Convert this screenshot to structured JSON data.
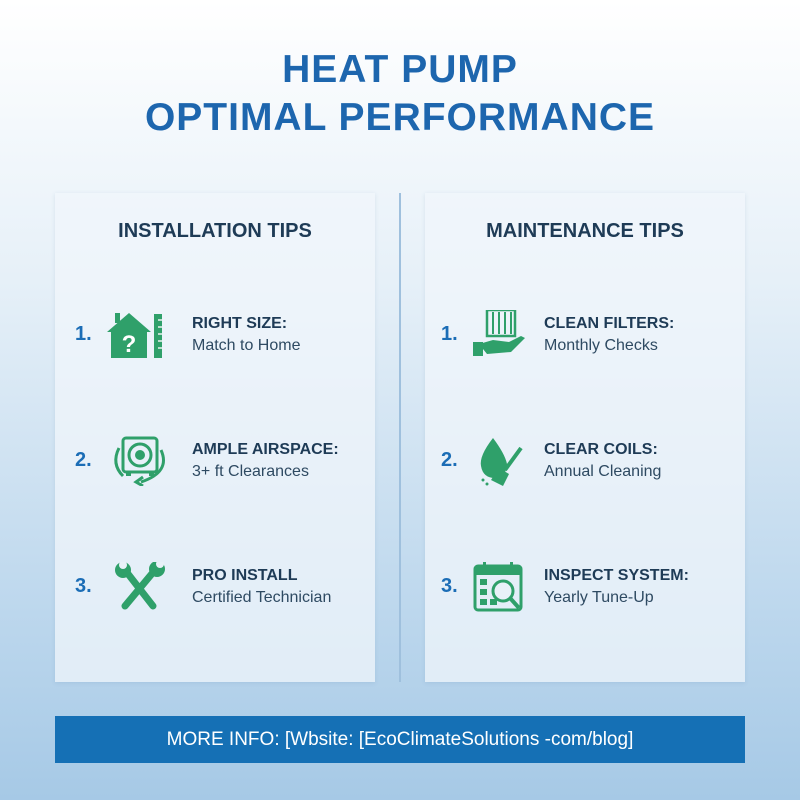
{
  "title": {
    "line1": "HEAT PUMP",
    "line2": "OPTIMAL PERFORMANCE"
  },
  "installation": {
    "heading": "INSTALLATION TIPS",
    "items": [
      {
        "number": "1.",
        "title": "RIGHT SIZE:",
        "subtitle": "Match to Home",
        "icon": "house-question-ruler-icon"
      },
      {
        "number": "2.",
        "title": "AMPLE AIRSPACE:",
        "subtitle": "3+ ft Clearances",
        "icon": "fan-unit-circulation-icon"
      },
      {
        "number": "3.",
        "title": "PRO INSTALL",
        "subtitle": "Certified Technician",
        "icon": "crossed-wrenches-icon"
      }
    ]
  },
  "maintenance": {
    "heading": "MAINTENANCE TIPS",
    "items": [
      {
        "number": "1.",
        "title": "CLEAN FILTERS:",
        "subtitle": "Monthly Checks",
        "icon": "hand-filter-icon"
      },
      {
        "number": "2.",
        "title": "CLEAR COILS:",
        "subtitle": "Annual Cleaning",
        "icon": "drop-brush-icon"
      },
      {
        "number": "3.",
        "title": "INSPECT SYSTEM:",
        "subtitle": "Yearly Tune-Up",
        "icon": "calendar-magnifier-icon"
      }
    ]
  },
  "footer": {
    "text": "MORE INFO: [Wbsite: [EcoClimateSolutions -com/blog]"
  },
  "colors": {
    "title": "#1d66ae",
    "icon": "#2fa06a",
    "footer": "#1570b5",
    "heading": "#1e3b56"
  }
}
